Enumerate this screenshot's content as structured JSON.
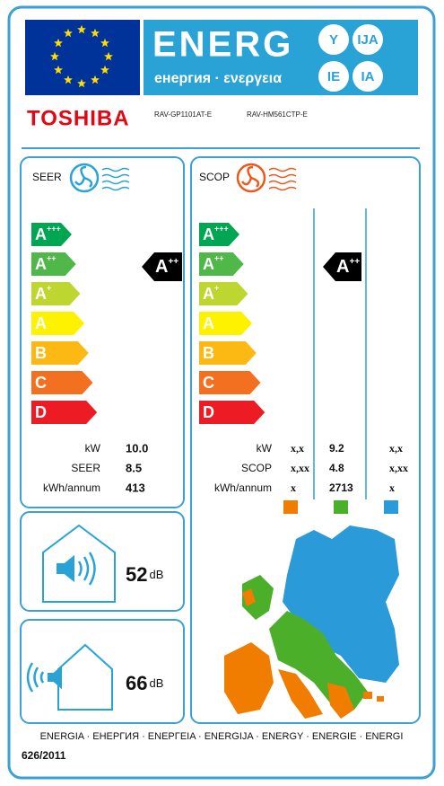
{
  "header": {
    "energy": "ENERG",
    "subtitle": "енергия · ενεργεια",
    "suffixes": [
      "Y",
      "IJA",
      "IE",
      "IA"
    ]
  },
  "brand": "TOSHIBA",
  "models": [
    "RAV-GP1101AT-E",
    "RAV-HM561CTP-E"
  ],
  "scale": [
    {
      "letter": "A",
      "sup": "+++",
      "color": "#00a651"
    },
    {
      "letter": "A",
      "sup": "++",
      "color": "#50b848"
    },
    {
      "letter": "A",
      "sup": "+",
      "color": "#bed630"
    },
    {
      "letter": "A",
      "color": "#fff200"
    },
    {
      "letter": "B",
      "color": "#fdb913"
    },
    {
      "letter": "C",
      "color": "#f37021"
    },
    {
      "letter": "D",
      "color": "#ed1c24"
    }
  ],
  "cooling": {
    "label": "SEER",
    "rating": {
      "letter": "A",
      "sup": "++"
    },
    "rows": [
      {
        "label": "kW",
        "value": "10.0"
      },
      {
        "label": "SEER",
        "value": "8.5"
      },
      {
        "label": "kWh/annum",
        "value": "413"
      }
    ]
  },
  "heating": {
    "label": "SCOP",
    "rating": {
      "letter": "A",
      "sup": "++"
    },
    "zones": [
      {
        "color": "#f07d00"
      },
      {
        "color": "#4caf2a"
      },
      {
        "color": "#2a9ad8"
      }
    ],
    "rows": [
      {
        "label": "kW",
        "values": [
          "x,x",
          "9.2",
          "x,x"
        ]
      },
      {
        "label": "SCOP",
        "values": [
          "x,xx",
          "4.8",
          "x,xx"
        ]
      },
      {
        "label": "kWh/annum",
        "values": [
          "x",
          "2713",
          "x"
        ]
      }
    ]
  },
  "noise": [
    {
      "value": "52",
      "unit": "dB"
    },
    {
      "value": "66",
      "unit": "dB"
    }
  ],
  "footer": {
    "languages": "ENERGIA · ЕНЕРГИЯ · ΕΝΕΡΓΕΙΑ · ENERGIJA · ENERGY · ENERGIE · ENERGI",
    "regulation": "626/2011"
  }
}
